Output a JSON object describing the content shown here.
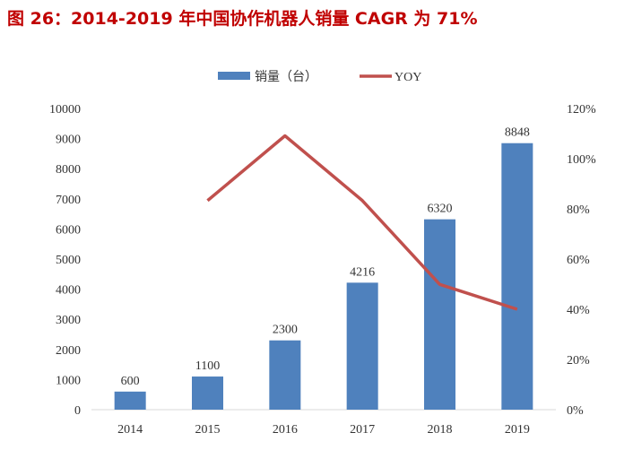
{
  "chart_data": {
    "type": "bar+line",
    "title": "图 26：2014-2019 年中国协作机器人销量 CAGR 为 71%",
    "categories": [
      "2014",
      "2015",
      "2016",
      "2017",
      "2018",
      "2019"
    ],
    "series": [
      {
        "name": "销量（台）",
        "type": "bar",
        "axis": "left",
        "color": "#4f81bd",
        "values": [
          600,
          1100,
          2300,
          4216,
          6320,
          8848
        ],
        "data_labels": [
          "600",
          "1100",
          "2300",
          "4216",
          "6320",
          "8848"
        ]
      },
      {
        "name": "YOY",
        "type": "line",
        "axis": "right",
        "color": "#c0504d",
        "values": [
          null,
          83.3,
          109.1,
          83.3,
          49.9,
          40.0
        ]
      }
    ],
    "left_axis": {
      "ylim": [
        0,
        10000
      ],
      "ticks": [
        "0",
        "1000",
        "2000",
        "3000",
        "4000",
        "5000",
        "6000",
        "7000",
        "8000",
        "9000",
        "10000"
      ]
    },
    "right_axis": {
      "ylim": [
        0,
        120
      ],
      "ticks": [
        "0%",
        "20%",
        "40%",
        "60%",
        "80%",
        "100%",
        "120%"
      ]
    },
    "grid": false,
    "legend_position": "top"
  }
}
